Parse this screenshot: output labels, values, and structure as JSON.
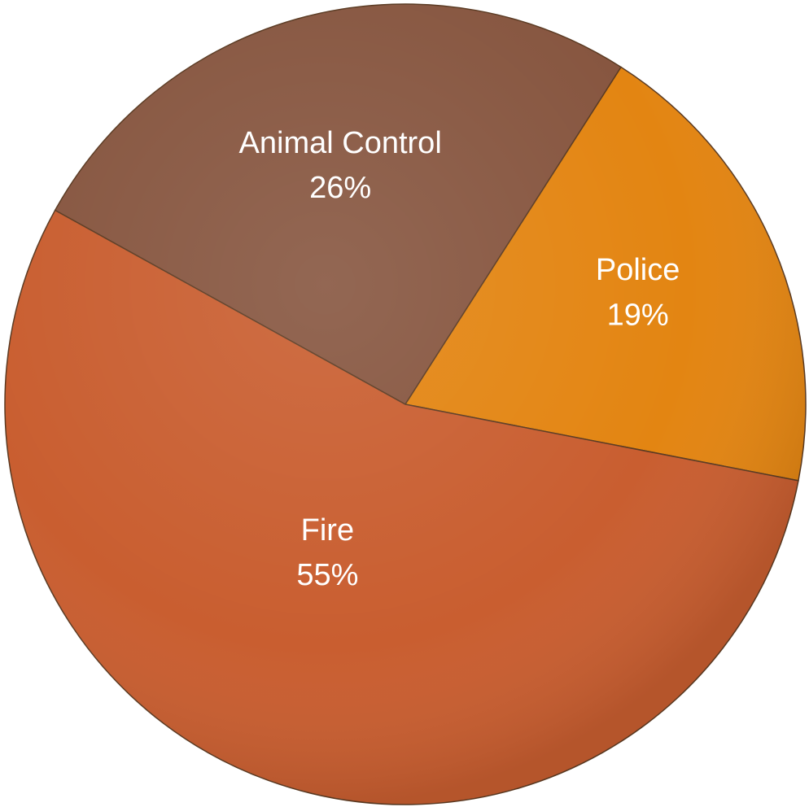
{
  "chart_data": {
    "type": "pie",
    "title": "",
    "legend": "none",
    "slices": [
      {
        "name": "Animal Control",
        "value": 26,
        "percent_label": "26%",
        "color": "#875640"
      },
      {
        "name": "Police",
        "value": 19,
        "percent_label": "19%",
        "color": "#e38512"
      },
      {
        "name": "Fire",
        "value": 55,
        "percent_label": "55%",
        "color": "#c95e30"
      }
    ]
  }
}
